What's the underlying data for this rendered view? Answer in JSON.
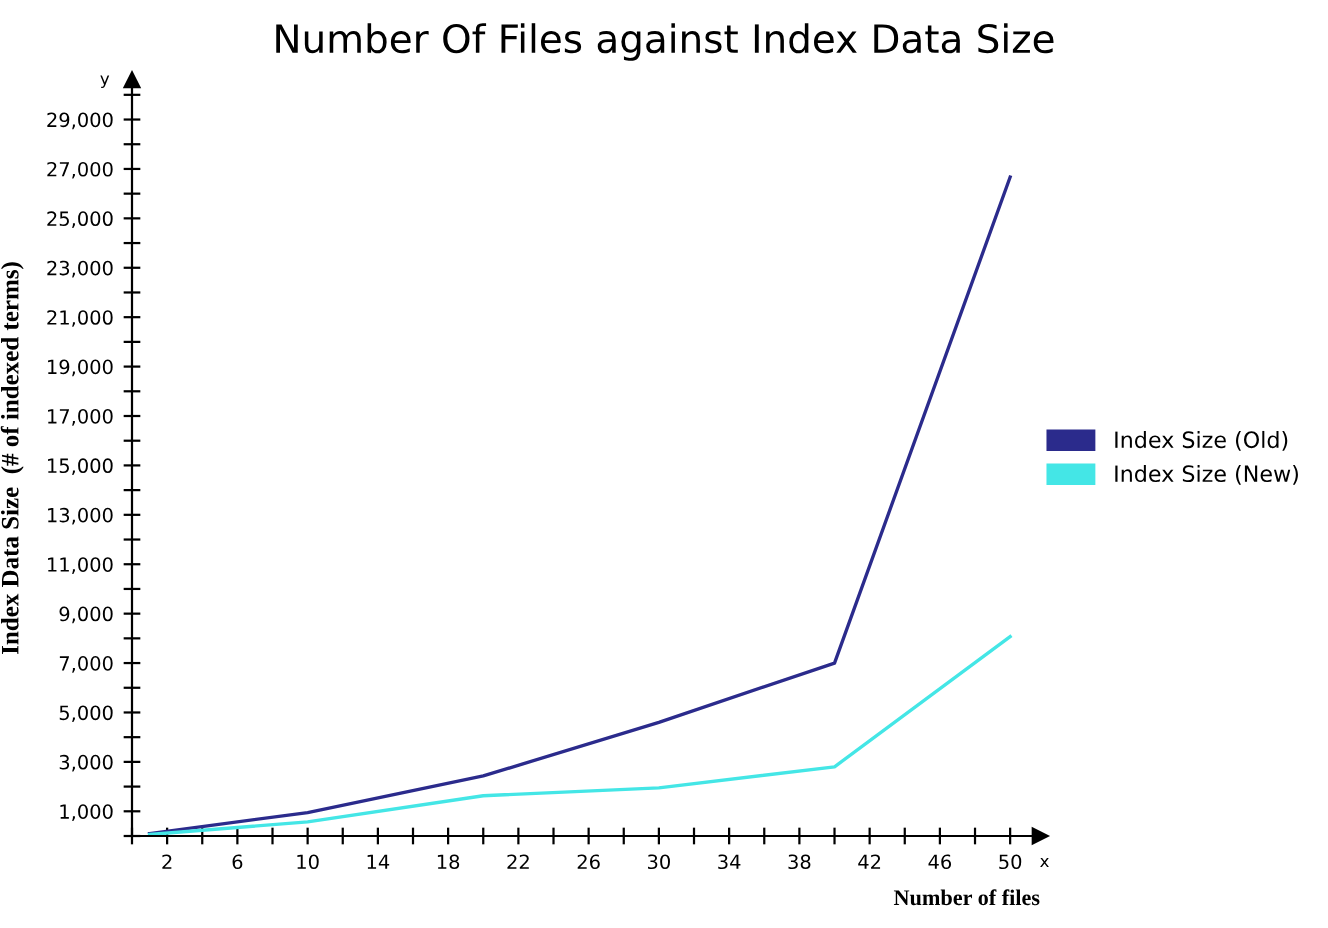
{
  "chart_data": {
    "type": "line",
    "title": "Number Of Files against Index Data Size",
    "xlabel": "Number of files",
    "ylabel": "Index Data Size  (# of indexed terms)",
    "x": [
      1,
      10,
      20,
      30,
      40,
      50
    ],
    "series": [
      {
        "name": "Index Size (Old)",
        "color": "#2b2b8c",
        "values": [
          100,
          950,
          2430,
          4600,
          7000,
          26670
        ]
      },
      {
        "name": "Index Size (New)",
        "color": "#44e6e6",
        "values": [
          60,
          570,
          1630,
          1950,
          2800,
          8070
        ]
      }
    ],
    "xlim": [
      0,
      51.7
    ],
    "ylim": [
      0,
      30600
    ],
    "xticks": [
      {
        "value": 0,
        "label": null
      },
      2,
      {
        "value": 4,
        "label": null
      },
      6,
      {
        "value": 8,
        "label": null
      },
      10,
      {
        "value": 12,
        "label": null
      },
      14,
      {
        "value": 16,
        "label": null
      },
      18,
      {
        "value": 20,
        "label": null
      },
      22,
      {
        "value": 24,
        "label": null
      },
      26,
      {
        "value": 28,
        "label": null
      },
      30,
      {
        "value": 32,
        "label": null
      },
      34,
      {
        "value": 36,
        "label": null
      },
      38,
      {
        "value": 40,
        "label": null
      },
      42,
      {
        "value": 44,
        "label": null
      },
      46,
      {
        "value": 48,
        "label": null
      },
      50
    ],
    "yticks": [
      {
        "value": 0,
        "label": null
      },
      {
        "value": 1000,
        "label": "1,000"
      },
      {
        "value": 2000,
        "label": null
      },
      {
        "value": 3000,
        "label": "3,000"
      },
      {
        "value": 4000,
        "label": null
      },
      {
        "value": 5000,
        "label": "5,000"
      },
      {
        "value": 6000,
        "label": null
      },
      {
        "value": 7000,
        "label": "7,000"
      },
      {
        "value": 8000,
        "label": null
      },
      {
        "value": 9000,
        "label": "9,000"
      },
      {
        "value": 10000,
        "label": null
      },
      {
        "value": 11000,
        "label": "11,000"
      },
      {
        "value": 12000,
        "label": null
      },
      {
        "value": 13000,
        "label": "13,000"
      },
      {
        "value": 14000,
        "label": null
      },
      {
        "value": 15000,
        "label": "15,000"
      },
      {
        "value": 16000,
        "label": null
      },
      {
        "value": 17000,
        "label": "17,000"
      },
      {
        "value": 18000,
        "label": null
      },
      {
        "value": 19000,
        "label": "19,000"
      },
      {
        "value": 20000,
        "label": null
      },
      {
        "value": 21000,
        "label": "21,000"
      },
      {
        "value": 22000,
        "label": null
      },
      {
        "value": 23000,
        "label": "23,000"
      },
      {
        "value": 24000,
        "label": null
      },
      {
        "value": 25000,
        "label": "25,000"
      },
      {
        "value": 26000,
        "label": null
      },
      {
        "value": 27000,
        "label": "27,000"
      },
      {
        "value": 28000,
        "label": null
      },
      {
        "value": 29000,
        "label": "29,000"
      },
      {
        "value": 30000,
        "label": null
      }
    ],
    "annotations": [
      "y",
      "x"
    ],
    "grid": false,
    "legend": "right",
    "marker": "none",
    "line_style": "solid"
  }
}
